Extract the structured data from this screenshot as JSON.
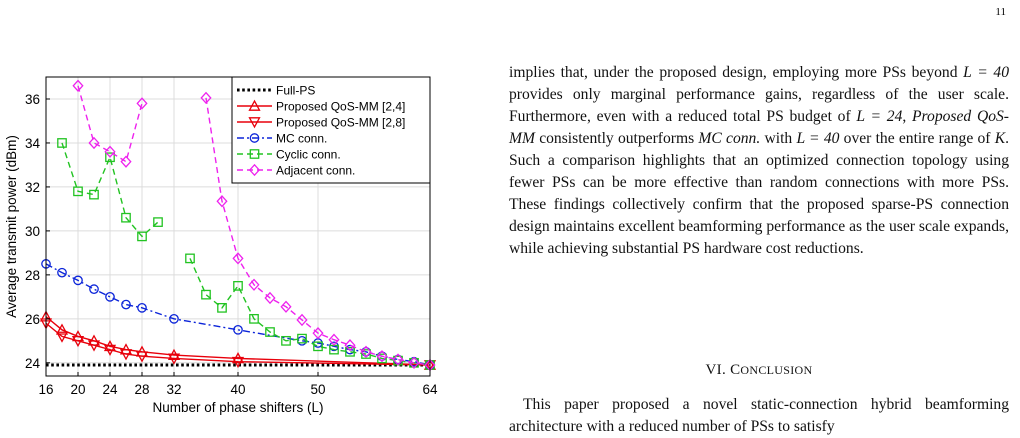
{
  "page": {
    "number": "11"
  },
  "figure": {
    "chart_data": {
      "type": "line",
      "xlabel": "Number of phase shifters (L)",
      "ylabel": "Average transmit power (dBm)",
      "xlim": [
        16,
        64
      ],
      "ylim": [
        23.4,
        37.0
      ],
      "xticks": [
        16,
        20,
        24,
        28,
        32,
        40,
        50,
        64
      ],
      "yticks": [
        24,
        26,
        28,
        30,
        32,
        34,
        36
      ],
      "grid": true,
      "legend_position": "top-right",
      "series": [
        {
          "name": "Full-PS",
          "color": "#000000",
          "style": "dotted",
          "marker": "none",
          "x": [
            16,
            64
          ],
          "y": [
            23.9,
            23.9
          ]
        },
        {
          "name": "Proposed QoS-MM [2,4]",
          "color": "#e8000b",
          "style": "solid",
          "marker": "triangle-up",
          "x": [
            16,
            18,
            20,
            22,
            24,
            26,
            28,
            32,
            40,
            64
          ],
          "y": [
            26.1,
            25.5,
            25.2,
            25.0,
            24.75,
            24.6,
            24.5,
            24.35,
            24.2,
            23.9
          ]
        },
        {
          "name": "Proposed QoS-MM [2,8]",
          "color": "#e8000b",
          "style": "solid",
          "marker": "triangle-down",
          "x": [
            16,
            18,
            20,
            22,
            24,
            26,
            28,
            32,
            40,
            64
          ],
          "y": [
            25.8,
            25.2,
            25.0,
            24.8,
            24.6,
            24.4,
            24.3,
            24.2,
            24.05,
            23.9
          ]
        },
        {
          "name": "MC conn.",
          "color": "#0b24d9",
          "style": "dashdot",
          "marker": "circle",
          "x": [
            16,
            18,
            20,
            22,
            24,
            26,
            28,
            32,
            40,
            48,
            50,
            52,
            54,
            56,
            58,
            60,
            62,
            64
          ],
          "y": [
            28.5,
            28.1,
            27.75,
            27.35,
            27.0,
            26.65,
            26.5,
            26.0,
            25.5,
            25.0,
            24.9,
            24.75,
            24.6,
            24.5,
            24.3,
            24.15,
            24.05,
            23.9
          ]
        },
        {
          "name": "Cyclic conn.",
          "color": "#22c322",
          "style": "dashed",
          "marker": "square",
          "x": [
            18,
            20,
            22,
            24,
            26,
            28,
            30,
            null,
            34,
            36,
            38,
            40,
            42,
            44,
            46,
            48,
            50,
            52,
            54,
            56,
            58,
            60,
            62,
            64
          ],
          "y": [
            34.0,
            31.8,
            31.65,
            33.35,
            30.6,
            29.75,
            30.4,
            null,
            28.75,
            27.1,
            26.5,
            27.5,
            26.0,
            25.4,
            25.0,
            25.1,
            24.75,
            24.6,
            24.5,
            24.4,
            24.2,
            24.1,
            24.0,
            23.9
          ]
        },
        {
          "name": "Adjacent conn.",
          "color": "#ee22ee",
          "style": "dashed",
          "marker": "diamond",
          "x": [
            20,
            22,
            24,
            26,
            28,
            null,
            36,
            38,
            40,
            42,
            44,
            46,
            48,
            50,
            52,
            54,
            56,
            58,
            60,
            62,
            64
          ],
          "y": [
            36.6,
            34.0,
            33.6,
            33.15,
            35.8,
            null,
            36.05,
            31.35,
            28.75,
            27.55,
            26.95,
            26.55,
            25.95,
            25.35,
            25.05,
            24.8,
            24.5,
            24.3,
            24.15,
            24.0,
            23.9
          ]
        }
      ]
    }
  },
  "text": {
    "p1": {
      "s1": "implies that, under the proposed design, employing more PSs beyond ",
      "m1": "L = 40",
      "s2": " provides only marginal performance gains, regardless of the user scale. Furthermore, even with a reduced total PS budget of ",
      "m2": "L = 24",
      "s3": ", ",
      "e1": "Proposed QoS-MM",
      "s4": " consistently outperforms ",
      "e2": "MC conn.",
      "s5": " with ",
      "m3": "L = 40",
      "s6": " over the entire range of ",
      "m4": "K",
      "s7": ". Such a comparison highlights that an optimized connection topology using fewer PSs can be more effective than random connections with more PSs. These findings collectively confirm that the proposed sparse-PS connection design maintains excellent beamforming performance as the user scale expands, while achieving substantial PS hardware cost reductions."
    },
    "section": {
      "number": "VI. C",
      "title_rest": "ONCLUSION"
    },
    "conclusion": "This paper proposed a novel static-connection hybrid beamforming architecture with a reduced number of PSs to satisfy"
  }
}
